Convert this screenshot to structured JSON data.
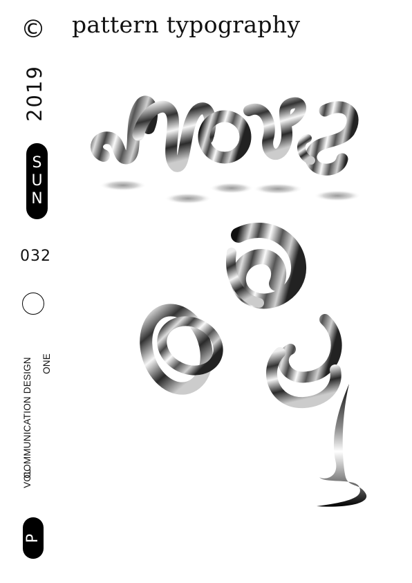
{
  "header": {
    "copyright_symbol": "©",
    "title": "pattern typography"
  },
  "sidebar": {
    "year": "2019",
    "day_letters": [
      "S",
      "U",
      "N"
    ],
    "issue_number": "032",
    "credit_line_1": "COMMUNICATION DESIGN",
    "credit_line_2": "VOL.",
    "credit_line_3": "ONE",
    "badge_letter": "P"
  },
  "artwork": {
    "description_icon": "chrome-ribbon-lettering",
    "colors": {
      "ink": "#000000",
      "paper": "#ffffff"
    }
  }
}
